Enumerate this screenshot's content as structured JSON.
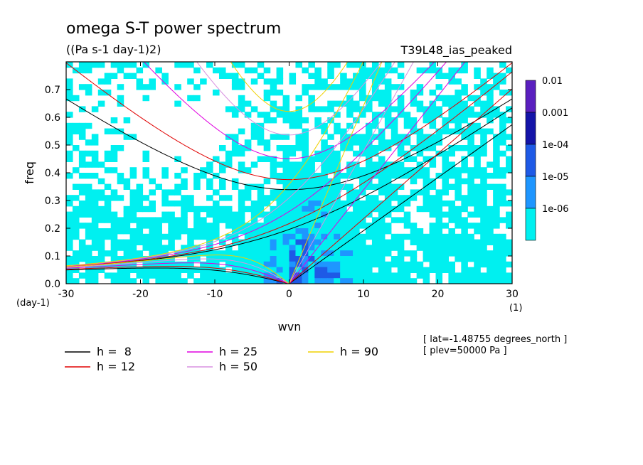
{
  "chart_data": {
    "type": "heatmap",
    "title": "omega S-T power spectrum",
    "subtitle": "((Pa s-1 day-1)2)",
    "dataset_label": "T39L48_ias_peaked",
    "xlabel": "wvn",
    "ylabel": "freq",
    "x_units": "(1)",
    "y_units": "(day-1)",
    "xlim": [
      -30,
      30
    ],
    "ylim": [
      0,
      0.8
    ],
    "xticks": [
      -30,
      -20,
      -10,
      0,
      10,
      20,
      30
    ],
    "xtick_labels": [
      "-30",
      "-20",
      "-10",
      "0",
      "10",
      "20",
      "30"
    ],
    "yticks": [
      0,
      0.1,
      0.2,
      0.3,
      0.4,
      0.5,
      0.6,
      0.7
    ],
    "ytick_labels": [
      "0.0",
      "0.1",
      "0.2",
      "0.3",
      "0.4",
      "0.5",
      "0.6",
      "0.7"
    ],
    "colorbar": {
      "labels": [
        "0.01",
        "0.001",
        "1e-04",
        "1e-05",
        "1e-06"
      ],
      "colors": [
        "#5a1fbf",
        "#1414a8",
        "#1e5ae6",
        "#1e96ff",
        "#00f0f0"
      ]
    },
    "dispersion_curves": [
      {
        "label": "h =  8",
        "h": 8,
        "color": "#000000"
      },
      {
        "label": "h = 12",
        "h": 12,
        "color": "#e00000"
      },
      {
        "label": "h = 25",
        "h": 25,
        "color": "#e000e0"
      },
      {
        "label": "h = 50",
        "h": 50,
        "color": "#d890e0"
      },
      {
        "label": "h = 90",
        "h": 90,
        "color": "#f0d000"
      }
    ],
    "annotations": [
      "[ lat=-1.48755 degrees_north ]",
      "[ plev=50000 Pa ]"
    ]
  },
  "colors": {
    "background": "#ffffff",
    "cyan": "#00f0f0",
    "light_blue": "#1e96ff",
    "medium_blue": "#1e5ae6"
  }
}
